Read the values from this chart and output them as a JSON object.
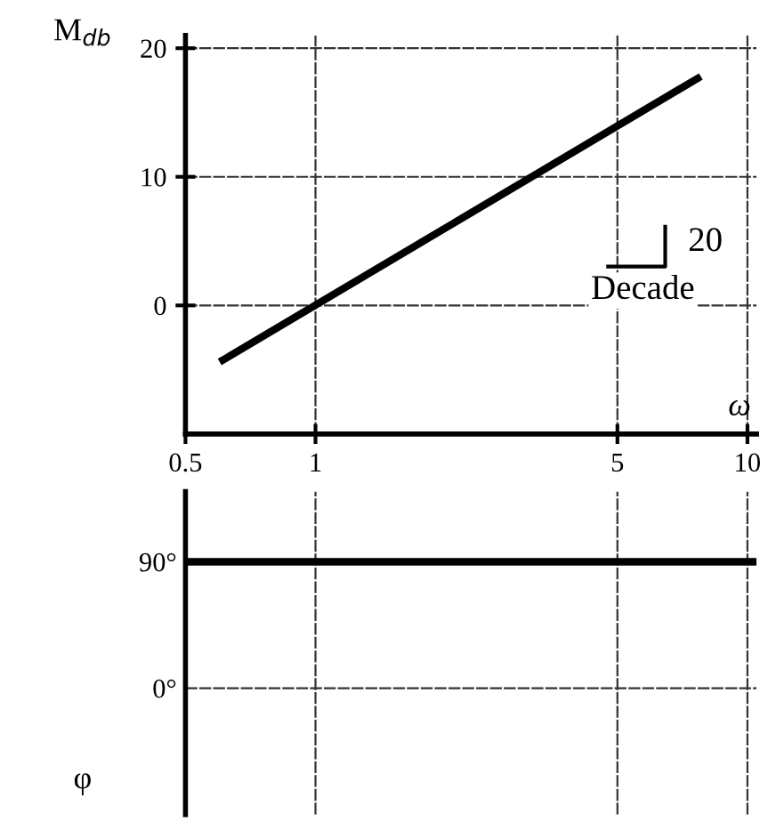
{
  "chart_data": [
    {
      "type": "line",
      "ylabel": "M$_{db}$",
      "xlabel": "ω",
      "x": [
        0.6,
        7.8
      ],
      "series": [
        {
          "color": "#000000",
          "values": [
            -4.4,
            17.8
          ]
        }
      ],
      "annotations": [
        "20",
        "Decade"
      ],
      "log": "x",
      "xlim": [
        0.5,
        10.5
      ],
      "xticks": [
        0.5,
        1,
        5,
        10
      ],
      "ylim": [
        -10,
        21
      ],
      "yticks": [
        0,
        10,
        20
      ],
      "grid": true
    },
    {
      "type": "line",
      "ylabel": "φ",
      "x": [
        0.5,
        10.5
      ],
      "series": [
        {
          "color": "#000000",
          "values": [
            90,
            90
          ]
        }
      ],
      "log": "x",
      "xlim": [
        0.5,
        10.5
      ],
      "xticks": [
        0.5,
        1,
        5,
        10
      ],
      "ylim": [
        -90,
        140
      ],
      "yticks": [
        {
          "value": 90,
          "label": "90°"
        },
        {
          "value": 0,
          "label": "0°"
        }
      ],
      "grid": true,
      "tick_labels": "y"
    }
  ]
}
